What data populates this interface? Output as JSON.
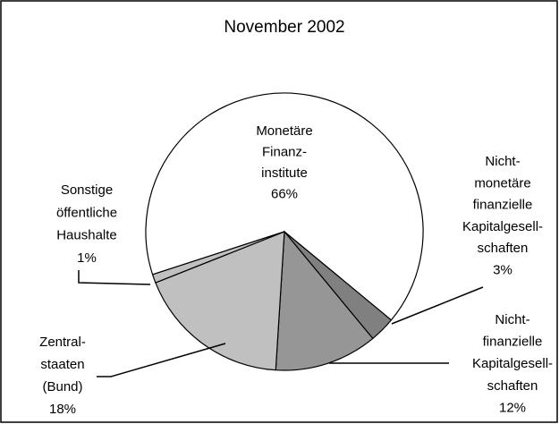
{
  "chart_data": {
    "type": "pie",
    "title": "November 2002",
    "categories": [
      [
        "Monetäre",
        "Finanz-",
        "institute"
      ],
      [
        "Nicht-",
        "monetäre",
        "finanzielle",
        "Kapitalgesell-",
        "schaften"
      ],
      [
        "Nicht-",
        "finanzielle",
        "Kapitalgesell-",
        "schaften"
      ],
      [
        "Zentral-",
        "staaten",
        "(Bund)"
      ],
      [
        "Sonstige",
        "öffentliche",
        "Haushalte"
      ]
    ],
    "values": [
      66,
      3,
      12,
      18,
      1
    ],
    "value_labels": [
      "66%",
      "3%",
      "12%",
      "18%",
      "1%"
    ],
    "colors": [
      "#ffffff",
      "#808080",
      "#969696",
      "#c0c0c0",
      "#c0c0c0"
    ]
  }
}
